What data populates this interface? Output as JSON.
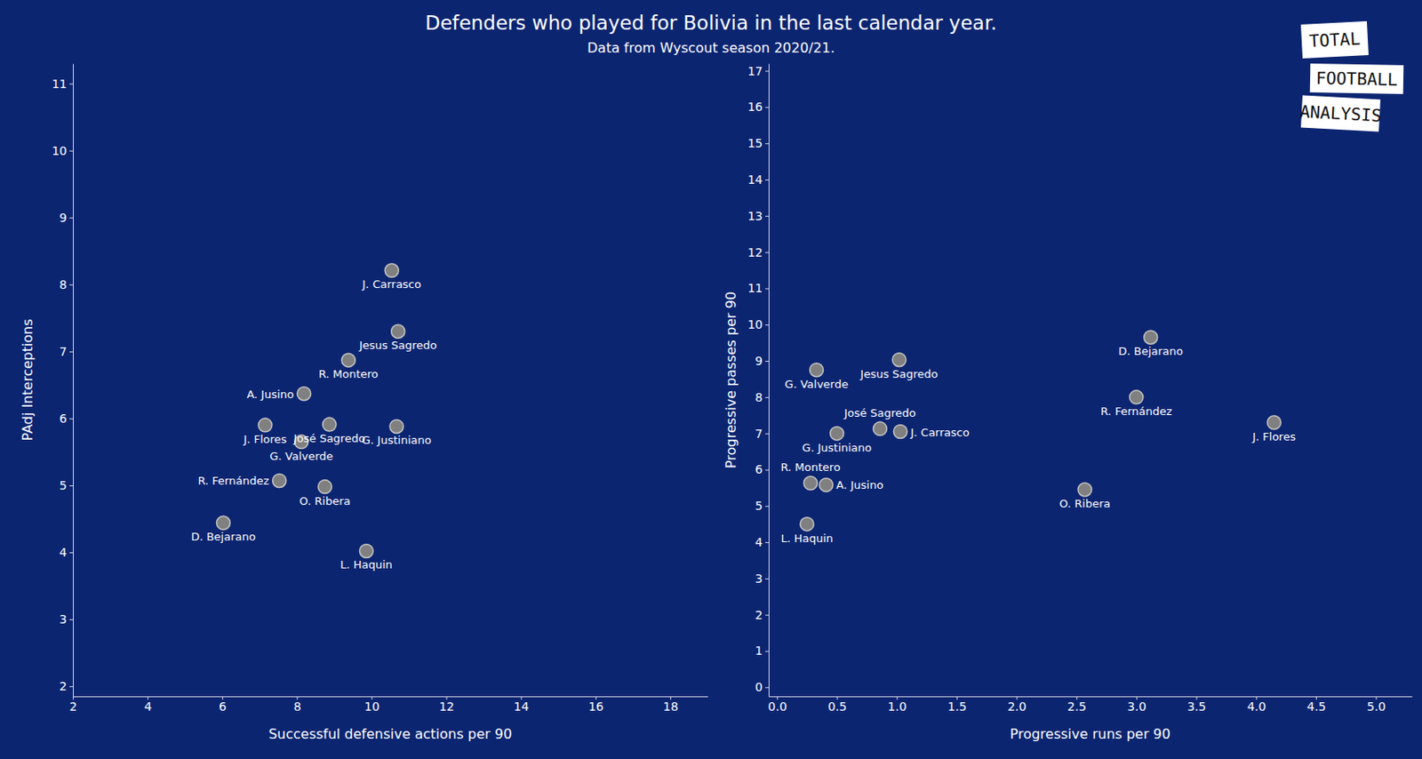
{
  "chart_data": [
    {
      "type": "scatter",
      "title": "Defenders who played for Bolivia in the last calendar year.",
      "subtitle": "Data from Wyscout season 2020/21.",
      "annotations": [
        "TOTAL",
        "FOOTBALL",
        "ANALYSIS"
      ],
      "x_label": "Successful defensive actions per 90",
      "y_label": "PAdj Interceptions",
      "xlim": [
        2,
        19
      ],
      "ylim": [
        1.85,
        11.3
      ],
      "xticks": [
        2,
        4,
        6,
        8,
        10,
        12,
        14,
        16,
        18
      ],
      "yticks": [
        2,
        3,
        4,
        5,
        6,
        7,
        8,
        9,
        10,
        11
      ],
      "series": [
        {
          "color": "#808080",
          "labels": [
            "J. Carrasco",
            "Jesus Sagredo",
            "R. Montero",
            "A. Jusino",
            "José Sagredo",
            "J. Flores",
            "G. Valverde",
            "G. Justiniano",
            "R. Fernández",
            "O. Ribera",
            "D. Bejarano",
            "L. Haquin"
          ],
          "x": [
            10.54,
            10.71,
            9.38,
            8.19,
            8.87,
            7.15,
            8.12,
            10.67,
            7.53,
            8.75,
            6.03,
            9.86
          ],
          "values": [
            8.21,
            7.3,
            6.87,
            6.37,
            5.91,
            5.9,
            5.65,
            5.88,
            5.07,
            4.98,
            4.44,
            4.02
          ]
        }
      ]
    },
    {
      "type": "scatter",
      "x_label": "Progressive runs per 90",
      "y_label": "Progressive passes per 90",
      "xlim": [
        -0.07,
        5.3
      ],
      "ylim": [
        -0.25,
        17.2
      ],
      "xticks": [
        {
          "value": 0,
          "label": "0.0"
        },
        {
          "value": 0.5,
          "label": "0.5"
        },
        {
          "value": 1,
          "label": "1.0"
        },
        {
          "value": 1.5,
          "label": "1.5"
        },
        {
          "value": 2,
          "label": "2.0"
        },
        {
          "value": 2.5,
          "label": "2.5"
        },
        {
          "value": 3,
          "label": "3.0"
        },
        {
          "value": 3.5,
          "label": "3.5"
        },
        {
          "value": 4,
          "label": "4.0"
        },
        {
          "value": 4.5,
          "label": "4.5"
        },
        {
          "value": 5,
          "label": "5.0"
        }
      ],
      "yticks": [
        0,
        1,
        2,
        3,
        4,
        5,
        6,
        7,
        8,
        9,
        10,
        11,
        12,
        13,
        14,
        15,
        16,
        17
      ],
      "series": [
        {
          "color": "#808080",
          "labels": [
            "J. Carrasco",
            "Jesus Sagredo",
            "R. Montero",
            "A. Jusino",
            "José Sagredo",
            "J. Flores",
            "G. Valverde",
            "G. Justiniano",
            "R. Fernández",
            "O. Ribera",
            "D. Bejarano",
            "L. Haquin"
          ],
          "x": [
            1.03,
            1.02,
            0.28,
            0.41,
            0.86,
            4.15,
            0.33,
            0.5,
            3.0,
            2.57,
            3.12,
            0.25
          ],
          "values": [
            7.05,
            9.03,
            5.63,
            5.58,
            7.13,
            7.3,
            8.75,
            7.0,
            8.0,
            5.45,
            9.65,
            4.5
          ]
        }
      ]
    }
  ]
}
